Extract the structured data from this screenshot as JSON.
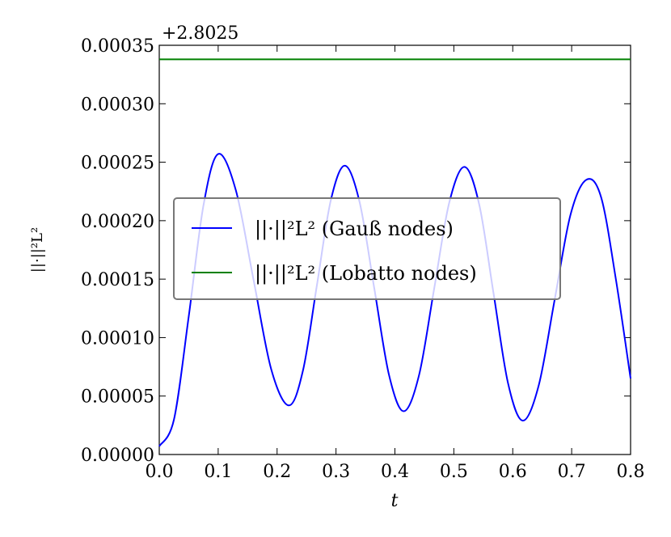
{
  "chart_data": {
    "type": "line",
    "offset_text": "+2.8025",
    "xlabel": "t",
    "ylabel": "||·||²L²",
    "x": [
      0,
      0.025,
      0.05,
      0.075,
      0.1,
      0.13,
      0.16,
      0.19,
      0.22,
      0.244,
      0.2675,
      0.291,
      0.315,
      0.34,
      0.365,
      0.39,
      0.415,
      0.441,
      0.4665,
      0.492,
      0.518,
      0.543,
      0.5675,
      0.592,
      0.617,
      0.644,
      0.671,
      0.698,
      0.725,
      0.75,
      0.775,
      0.8
    ],
    "series": [
      {
        "name": "||·||²L² (Gauß nodes)",
        "color": "#0000ff",
        "values": [
          7e-06,
          3e-05,
          0.000118,
          0.000213,
          0.000257,
          0.000226,
          0.0001495,
          7.3e-05,
          4.2e-05,
          7.2e-05,
          0.0001445,
          0.000217,
          0.000247,
          0.000216,
          0.000142,
          6.8e-05,
          3.7e-05,
          6.8e-05,
          0.0001415,
          0.000215,
          0.000246,
          0.000214,
          0.0001375,
          6.1e-05,
          2.9e-05,
          5.9e-05,
          0.000132,
          0.000205,
          0.000235,
          0.00022,
          0.00015,
          6.5e-05
        ]
      },
      {
        "name": "||·||²L² (Lobatto nodes)",
        "color": "#008000",
        "values": [
          0.000338,
          0.000338,
          0.000338,
          0.000338,
          0.000338,
          0.000338,
          0.000338,
          0.000338,
          0.000338,
          0.000338,
          0.000338,
          0.000338,
          0.000338,
          0.000338,
          0.000338,
          0.000338,
          0.000338,
          0.000338,
          0.000338,
          0.000338,
          0.000338,
          0.000338,
          0.000338,
          0.000338,
          0.000338,
          0.000338,
          0.000338,
          0.000338,
          0.000338,
          0.000338,
          0.000338,
          0.000338
        ]
      }
    ],
    "xlim": [
      0,
      0.8
    ],
    "xticks": [
      {
        "value": 0,
        "label": "0.0"
      },
      0.1,
      0.2,
      0.3,
      0.4,
      0.5,
      0.6,
      0.7,
      0.8
    ],
    "ylim": [
      0,
      0.00035
    ],
    "yticks": [
      {
        "value": 0,
        "label": "0.00000"
      },
      {
        "value": 5e-05,
        "label": "0.00005"
      },
      {
        "value": 0.0001,
        "label": "0.00010"
      },
      {
        "value": 0.00015,
        "label": "0.00015"
      },
      {
        "value": 0.0002,
        "label": "0.00020"
      },
      {
        "value": 0.00025,
        "label": "0.00025"
      },
      {
        "value": 0.0003,
        "label": "0.00030"
      },
      {
        "value": 0.00035,
        "label": "0.00035"
      }
    ],
    "legend": "center left",
    "grid": false
  }
}
